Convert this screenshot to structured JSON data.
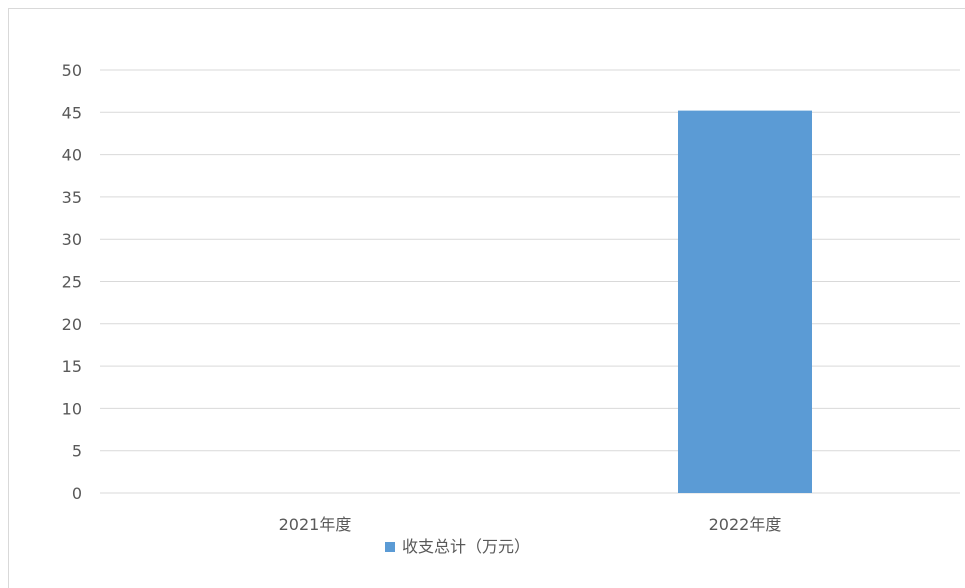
{
  "chart_data": {
    "type": "bar",
    "categories": [
      "2021年度",
      "2022年度"
    ],
    "series": [
      {
        "name": "收支总计（万元）",
        "values": [
          0,
          45.2
        ],
        "color": "#5b9bd5"
      }
    ],
    "yticks": [
      0,
      5,
      10,
      15,
      20,
      25,
      30,
      35,
      40,
      45,
      50
    ],
    "ylim": [
      0,
      50
    ],
    "grid": true,
    "legend": "bottom",
    "title": "",
    "xlabel": "",
    "ylabel": ""
  }
}
